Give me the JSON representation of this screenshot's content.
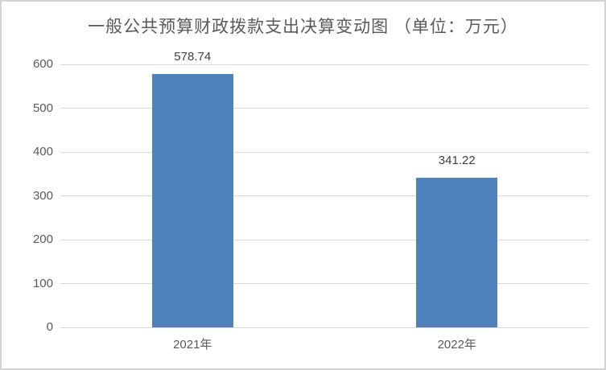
{
  "chart_data": {
    "type": "bar",
    "title": "一般公共预算财政拨款支出决算变动图 （单位：万元）",
    "categories": [
      "2021年",
      "2022年"
    ],
    "values": [
      578.74,
      341.22
    ],
    "data_labels": [
      "578.74",
      "341.22"
    ],
    "xlabel": "",
    "ylabel": "",
    "ylim": [
      0,
      600
    ],
    "yticks": [
      600,
      500,
      400,
      300,
      200,
      100,
      0
    ],
    "grid": true,
    "legend": false
  },
  "colors": {
    "bar": "#4F81BD",
    "gridline": "#D9D9D9",
    "axis_label": "#595959",
    "data_label": "#404040",
    "title": "#595959",
    "frame_border": "#D4D4D4",
    "background": "#FFFFFF"
  }
}
